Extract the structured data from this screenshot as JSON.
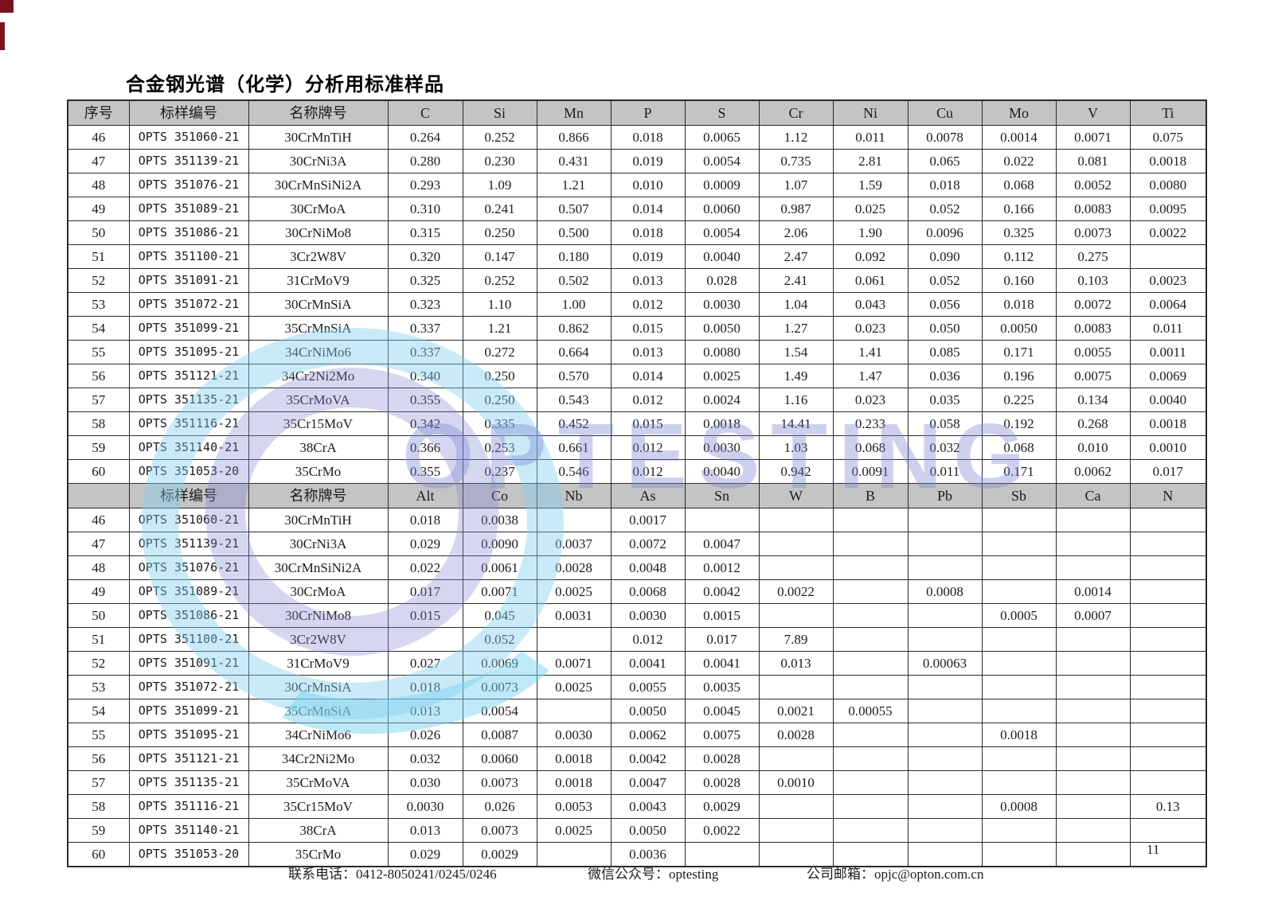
{
  "title": "合金钢光谱（化学）分析用标准样品",
  "page_number": "11",
  "watermark": {
    "text": "OPTESTING"
  },
  "colors": {
    "header_bg": "#c4c4c4",
    "accent_red": "#7a1220",
    "watermark_blue": "#7c85d1",
    "watermark_cyan": "#82ceee"
  },
  "footer": {
    "phone_label": "联系电话：",
    "phone_value": "0412-8050241/0245/0246",
    "wechat_label": "微信公众号：",
    "wechat_value": "optesting",
    "email_label": "公司邮箱：",
    "email_value": "opjc@opton.com.cn"
  },
  "sections": [
    {
      "headers": [
        "序号",
        "标样编号",
        "名称牌号",
        "C",
        "Si",
        "Mn",
        "P",
        "S",
        "Cr",
        "Ni",
        "Cu",
        "Mo",
        "V",
        "Ti"
      ],
      "rows": [
        [
          "46",
          "OPTS 351060-21",
          "30CrMnTiH",
          "0.264",
          "0.252",
          "0.866",
          "0.018",
          "0.0065",
          "1.12",
          "0.011",
          "0.0078",
          "0.0014",
          "0.0071",
          "0.075"
        ],
        [
          "47",
          "OPTS 351139-21",
          "30CrNi3A",
          "0.280",
          "0.230",
          "0.431",
          "0.019",
          "0.0054",
          "0.735",
          "2.81",
          "0.065",
          "0.022",
          "0.081",
          "0.0018"
        ],
        [
          "48",
          "OPTS 351076-21",
          "30CrMnSiNi2A",
          "0.293",
          "1.09",
          "1.21",
          "0.010",
          "0.0009",
          "1.07",
          "1.59",
          "0.018",
          "0.068",
          "0.0052",
          "0.0080"
        ],
        [
          "49",
          "OPTS 351089-21",
          "30CrMoA",
          "0.310",
          "0.241",
          "0.507",
          "0.014",
          "0.0060",
          "0.987",
          "0.025",
          "0.052",
          "0.166",
          "0.0083",
          "0.0095"
        ],
        [
          "50",
          "OPTS 351086-21",
          "30CrNiMo8",
          "0.315",
          "0.250",
          "0.500",
          "0.018",
          "0.0054",
          "2.06",
          "1.90",
          "0.0096",
          "0.325",
          "0.0073",
          "0.0022"
        ],
        [
          "51",
          "OPTS 351100-21",
          "3Cr2W8V",
          "0.320",
          "0.147",
          "0.180",
          "0.019",
          "0.0040",
          "2.47",
          "0.092",
          "0.090",
          "0.112",
          "0.275",
          ""
        ],
        [
          "52",
          "OPTS 351091-21",
          "31CrMoV9",
          "0.325",
          "0.252",
          "0.502",
          "0.013",
          "0.028",
          "2.41",
          "0.061",
          "0.052",
          "0.160",
          "0.103",
          "0.0023"
        ],
        [
          "53",
          "OPTS 351072-21",
          "30CrMnSiA",
          "0.323",
          "1.10",
          "1.00",
          "0.012",
          "0.0030",
          "1.04",
          "0.043",
          "0.056",
          "0.018",
          "0.0072",
          "0.0064"
        ],
        [
          "54",
          "OPTS 351099-21",
          "35CrMnSiA",
          "0.337",
          "1.21",
          "0.862",
          "0.015",
          "0.0050",
          "1.27",
          "0.023",
          "0.050",
          "0.0050",
          "0.0083",
          "0.011"
        ],
        [
          "55",
          "OPTS 351095-21",
          "34CrNiMo6",
          "0.337",
          "0.272",
          "0.664",
          "0.013",
          "0.0080",
          "1.54",
          "1.41",
          "0.085",
          "0.171",
          "0.0055",
          "0.0011"
        ],
        [
          "56",
          "OPTS 351121-21",
          "34Cr2Ni2Mo",
          "0.340",
          "0.250",
          "0.570",
          "0.014",
          "0.0025",
          "1.49",
          "1.47",
          "0.036",
          "0.196",
          "0.0075",
          "0.0069"
        ],
        [
          "57",
          "OPTS 351135-21",
          "35CrMoVA",
          "0.355",
          "0.250",
          "0.543",
          "0.012",
          "0.0024",
          "1.16",
          "0.023",
          "0.035",
          "0.225",
          "0.134",
          "0.0040"
        ],
        [
          "58",
          "OPTS 351116-21",
          "35Cr15MoV",
          "0.342",
          "0.335",
          "0.452",
          "0.015",
          "0.0018",
          "14.41",
          "0.233",
          "0.058",
          "0.192",
          "0.268",
          "0.0018"
        ],
        [
          "59",
          "OPTS 351140-21",
          "38CrA",
          "0.366",
          "0.253",
          "0.661",
          "0.012",
          "0.0030",
          "1.03",
          "0.068",
          "0.032",
          "0.068",
          "0.010",
          "0.0010"
        ],
        [
          "60",
          "OPTS 351053-20",
          "35CrMo",
          "0.355",
          "0.237",
          "0.546",
          "0.012",
          "0.0040",
          "0.942",
          "0.0091",
          "0.011",
          "0.171",
          "0.0062",
          "0.017"
        ]
      ]
    },
    {
      "headers": [
        "",
        "标样编号",
        "名称牌号",
        "Alt",
        "Co",
        "Nb",
        "As",
        "Sn",
        "W",
        "B",
        "Pb",
        "Sb",
        "Ca",
        "N"
      ],
      "rows": [
        [
          "46",
          "OPTS 351060-21",
          "30CrMnTiH",
          "0.018",
          "0.0038",
          "",
          "0.0017",
          "",
          "",
          "",
          "",
          "",
          "",
          ""
        ],
        [
          "47",
          "OPTS 351139-21",
          "30CrNi3A",
          "0.029",
          "0.0090",
          "0.0037",
          "0.0072",
          "0.0047",
          "",
          "",
          "",
          "",
          "",
          ""
        ],
        [
          "48",
          "OPTS 351076-21",
          "30CrMnSiNi2A",
          "0.022",
          "0.0061",
          "0.0028",
          "0.0048",
          "0.0012",
          "",
          "",
          "",
          "",
          "",
          ""
        ],
        [
          "49",
          "OPTS 351089-21",
          "30CrMoA",
          "0.017",
          "0.0071",
          "0.0025",
          "0.0068",
          "0.0042",
          "0.0022",
          "",
          "0.0008",
          "",
          "0.0014",
          ""
        ],
        [
          "50",
          "OPTS 351086-21",
          "30CrNiMo8",
          "0.015",
          "0.045",
          "0.0031",
          "0.0030",
          "0.0015",
          "",
          "",
          "",
          "0.0005",
          "0.0007",
          ""
        ],
        [
          "51",
          "OPTS 351100-21",
          "3Cr2W8V",
          "",
          "0.052",
          "",
          "0.012",
          "0.017",
          "7.89",
          "",
          "",
          "",
          "",
          ""
        ],
        [
          "52",
          "OPTS 351091-21",
          "31CrMoV9",
          "0.027",
          "0.0069",
          "0.0071",
          "0.0041",
          "0.0041",
          "0.013",
          "",
          "0.00063",
          "",
          "",
          ""
        ],
        [
          "53",
          "OPTS 351072-21",
          "30CrMnSiA",
          "0.018",
          "0.0073",
          "0.0025",
          "0.0055",
          "0.0035",
          "",
          "",
          "",
          "",
          "",
          ""
        ],
        [
          "54",
          "OPTS 351099-21",
          "35CrMnSiA",
          "0.013",
          "0.0054",
          "",
          "0.0050",
          "0.0045",
          "0.0021",
          "0.00055",
          "",
          "",
          "",
          ""
        ],
        [
          "55",
          "OPTS 351095-21",
          "34CrNiMo6",
          "0.026",
          "0.0087",
          "0.0030",
          "0.0062",
          "0.0075",
          "0.0028",
          "",
          "",
          "0.0018",
          "",
          ""
        ],
        [
          "56",
          "OPTS 351121-21",
          "34Cr2Ni2Mo",
          "0.032",
          "0.0060",
          "0.0018",
          "0.0042",
          "0.0028",
          "",
          "",
          "",
          "",
          "",
          ""
        ],
        [
          "57",
          "OPTS 351135-21",
          "35CrMoVA",
          "0.030",
          "0.0073",
          "0.0018",
          "0.0047",
          "0.0028",
          "0.0010",
          "",
          "",
          "",
          "",
          ""
        ],
        [
          "58",
          "OPTS 351116-21",
          "35Cr15MoV",
          "0.0030",
          "0.026",
          "0.0053",
          "0.0043",
          "0.0029",
          "",
          "",
          "",
          "0.0008",
          "",
          "0.13"
        ],
        [
          "59",
          "OPTS 351140-21",
          "38CrA",
          "0.013",
          "0.0073",
          "0.0025",
          "0.0050",
          "0.0022",
          "",
          "",
          "",
          "",
          "",
          ""
        ],
        [
          "60",
          "OPTS 351053-20",
          "35CrMo",
          "0.029",
          "0.0029",
          "",
          "0.0036",
          "",
          "",
          "",
          "",
          "",
          "",
          ""
        ]
      ]
    }
  ]
}
